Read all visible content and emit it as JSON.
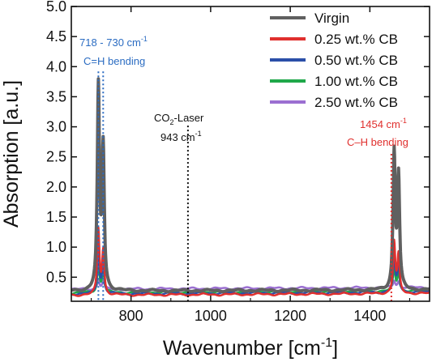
{
  "chart_data": {
    "type": "line",
    "xlabel": "Wavenumber [cm",
    "xlabel_sup": "-1",
    "xlabel_end": "]",
    "ylabel": "Absorption [a.u.]",
    "xlim": [
      650,
      1550
    ],
    "ylim": [
      0.1,
      5.0
    ],
    "xticks": [
      800,
      1000,
      1200,
      1400
    ],
    "yticks": [
      0.5,
      1.0,
      1.5,
      2.0,
      2.5,
      3.0,
      3.5,
      4.0,
      4.5,
      5.0
    ],
    "ytick_labels": [
      "0.5",
      "1.0",
      "1.5",
      "2.0",
      "2.5",
      "3.0",
      "3.5",
      "4.0",
      "4.5",
      "5.0"
    ],
    "legend_position": "top-right",
    "series": [
      {
        "name": "Virgin",
        "color": "#606060",
        "baseline": [
          0.27,
          0.29
        ],
        "peaks": [
          [
            718,
            3.35
          ],
          [
            730,
            2.35
          ],
          [
            1461,
            2.25
          ],
          [
            1472,
            1.85
          ]
        ]
      },
      {
        "name": "0.25 wt.% CB",
        "color": "#e0302e",
        "baseline": [
          0.2,
          0.23
        ],
        "peaks": [
          [
            718,
            1.08
          ],
          [
            730,
            0.72
          ],
          [
            1461,
            0.85
          ],
          [
            1472,
            0.62
          ]
        ]
      },
      {
        "name": "0.50 wt.% CB",
        "color": "#2b4fa8",
        "baseline": [
          0.22,
          0.25
        ],
        "peaks": [
          [
            718,
            0.72
          ],
          [
            730,
            0.52
          ],
          [
            1461,
            0.58
          ],
          [
            1472,
            0.47
          ]
        ]
      },
      {
        "name": "1.00 wt.% CB",
        "color": "#1fa84a",
        "baseline": [
          0.24,
          0.27
        ],
        "peaks": [
          [
            718,
            0.48
          ],
          [
            730,
            0.38
          ],
          [
            1461,
            0.38
          ],
          [
            1472,
            0.33
          ]
        ]
      },
      {
        "name": "2.50 wt.% CB",
        "color": "#9b6fd1",
        "baseline": [
          0.3,
          0.33
        ],
        "peaks": [
          [
            718,
            0.15
          ],
          [
            730,
            0.12
          ],
          [
            1461,
            0.12
          ],
          [
            1472,
            0.1
          ]
        ]
      }
    ],
    "reference_lines": [
      {
        "x": 718,
        "y_top": 3.92,
        "color": "#2b6cc2"
      },
      {
        "x": 730,
        "y_top": 3.92,
        "color": "#2b6cc2"
      },
      {
        "x": 943,
        "y_top": 3.02,
        "color": "#111111"
      },
      {
        "x": 1454,
        "y_top": 2.55,
        "color": "#e0302e"
      }
    ],
    "annotations": {
      "ch_left_range": "718 - 730 cm",
      "ch_left_sup": "-1",
      "ch_left_label": "C=H bending",
      "co2_prefix": "CO",
      "co2_sub": "2",
      "co2_suffix": "-Laser",
      "co2_value": "943 cm",
      "co2_sup": "-1",
      "ch_right_value": "1454 cm",
      "ch_right_sup": "-1",
      "ch_right_label": "C–H bending"
    }
  }
}
